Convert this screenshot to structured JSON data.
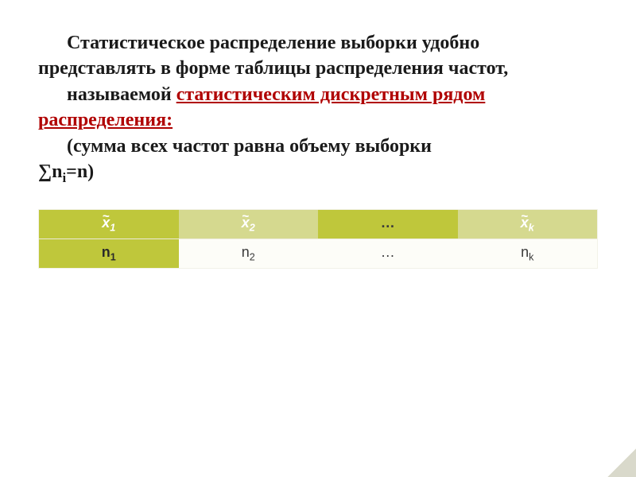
{
  "text": {
    "line1a": "Статистическое распределение выборки",
    "line1b": " удобно представлять в форме таблицы распределения частот,",
    "line2a": "называемой ",
    "line2b": "статистическим дискретным рядом распределения: ",
    "line3a": "(сумма всех частот равна объему выборки ",
    "line3b_sum": "∑n",
    "line3b_sub": "i",
    "line3b_eq": "=n)"
  },
  "table": {
    "header": {
      "c1_var": "x",
      "c1_sub": "1",
      "c2_var": "x",
      "c2_sub": "2",
      "c3": "…",
      "c4_var": "x",
      "c4_sub": "k"
    },
    "data": {
      "c1_var": "n",
      "c1_sub": "1",
      "c2_var": "n",
      "c2_sub": "2",
      "c3": "…",
      "c4_var": "n",
      "c4_sub": "k"
    }
  },
  "colors": {
    "accent": "#bfc73b",
    "accent_light": "#d5d98f",
    "text_dark": "#1a1a1a",
    "text_red": "#b00000",
    "bg": "#ffffff",
    "table_bg": "#fdfdf8"
  }
}
